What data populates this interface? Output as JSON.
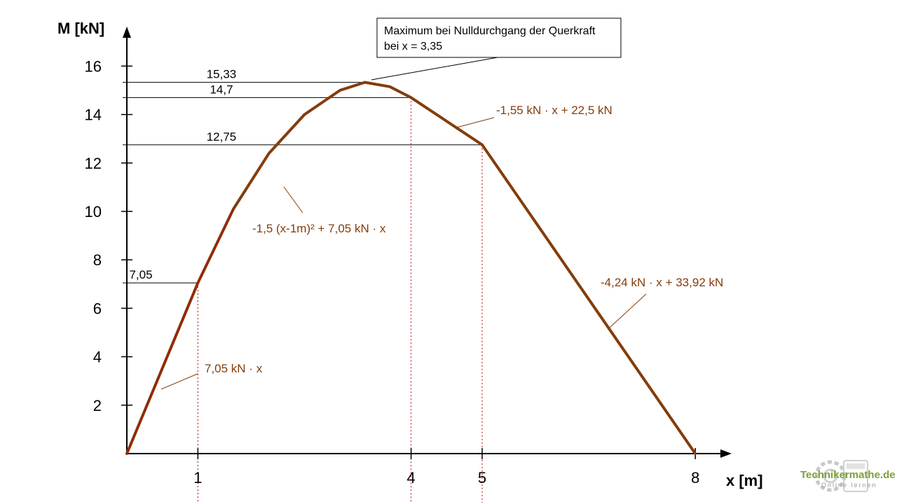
{
  "chart_data": {
    "type": "line",
    "ylabel": "M [kN]",
    "xlabel": "x [m]",
    "xlim": [
      0,
      8
    ],
    "ylim": [
      0,
      17
    ],
    "yticks": [
      2,
      4,
      6,
      8,
      10,
      12,
      14,
      16
    ],
    "xticks": [
      1,
      4,
      5,
      8
    ],
    "series": [
      {
        "points": [
          {
            "x": 0,
            "y": 0
          },
          {
            "x": 1,
            "y": 7.05
          },
          {
            "x": 1.5,
            "y": 10.1
          },
          {
            "x": 2,
            "y": 12.4
          },
          {
            "x": 2.5,
            "y": 14.0
          },
          {
            "x": 3,
            "y": 15.0
          },
          {
            "x": 3.35,
            "y": 15.33
          },
          {
            "x": 3.7,
            "y": 15.15
          },
          {
            "x": 4,
            "y": 14.7
          },
          {
            "x": 5,
            "y": 12.75
          },
          {
            "x": 8,
            "y": 0
          }
        ]
      }
    ],
    "value_labels": [
      {
        "text": "15,33",
        "y": 15.33
      },
      {
        "text": "14,7",
        "y": 14.7
      },
      {
        "text": "12,75",
        "y": 12.75
      },
      {
        "text": "7,05",
        "y": 7.05
      }
    ],
    "formulas": [
      "7,05 kN · x",
      "-1,5 (x-1m)² + 7,05 kN · x",
      "-1,55 kN · x + 22,5 kN",
      "-4,24 kN · x + 33,92 kN"
    ],
    "callout": {
      "line1": "Maximum bei Nulldurchgang der Querkraft",
      "line2": "bei x = 3,35"
    },
    "colors": {
      "curve": "#843c0c",
      "curve_highlight": "#c00000",
      "guides": "#c00000"
    }
  },
  "logo": {
    "text": "Technikermathe.de",
    "sub": "Online lernen"
  }
}
